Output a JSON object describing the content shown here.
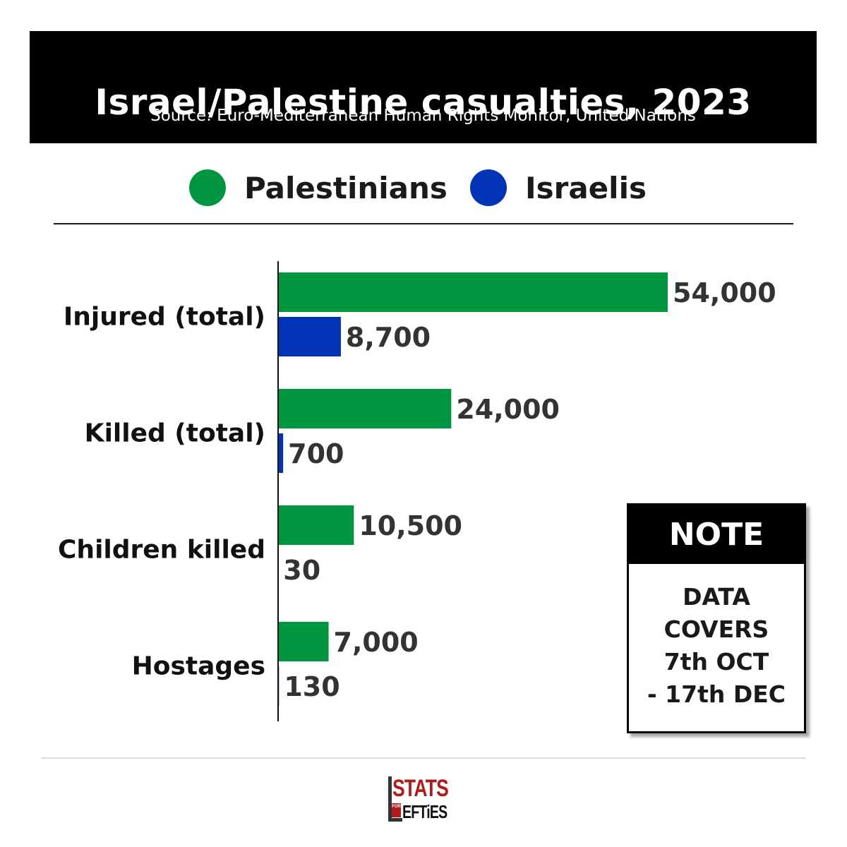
{
  "header": {
    "title": "Israel/Palestine casualties, 2023",
    "subtitle": "Source: Euro-Mediterranean Human Rights Monitor, United Nations"
  },
  "legend": [
    {
      "label": "Palestinians",
      "color": "#009640"
    },
    {
      "label": "Israelis",
      "color": "#0033b5"
    }
  ],
  "chart_data": {
    "type": "bar",
    "orientation": "horizontal",
    "title": "Israel/Palestine casualties, 2023",
    "categories": [
      "Injured (total)",
      "Killed (total)",
      "Children killed",
      "Hostages"
    ],
    "series": [
      {
        "name": "Palestinians",
        "color": "#009640",
        "values": [
          54000,
          24000,
          10500,
          7000
        ],
        "labels": [
          "54,000",
          "24,000",
          "10,500",
          "7,000"
        ]
      },
      {
        "name": "Israelis",
        "color": "#0033b5",
        "values": [
          8700,
          700,
          30,
          130
        ],
        "labels": [
          "8,700",
          "700",
          "30",
          "130"
        ]
      }
    ],
    "xlim": [
      0,
      54000
    ],
    "grid": false,
    "legend_position": "top"
  },
  "note": {
    "heading": "NOTE",
    "body": "DATA\nCOVERS\n7th OCT\n- 17th DEC"
  },
  "logo": {
    "stats": "STATS",
    "for": "FOR",
    "lefties": "EFTiES"
  }
}
